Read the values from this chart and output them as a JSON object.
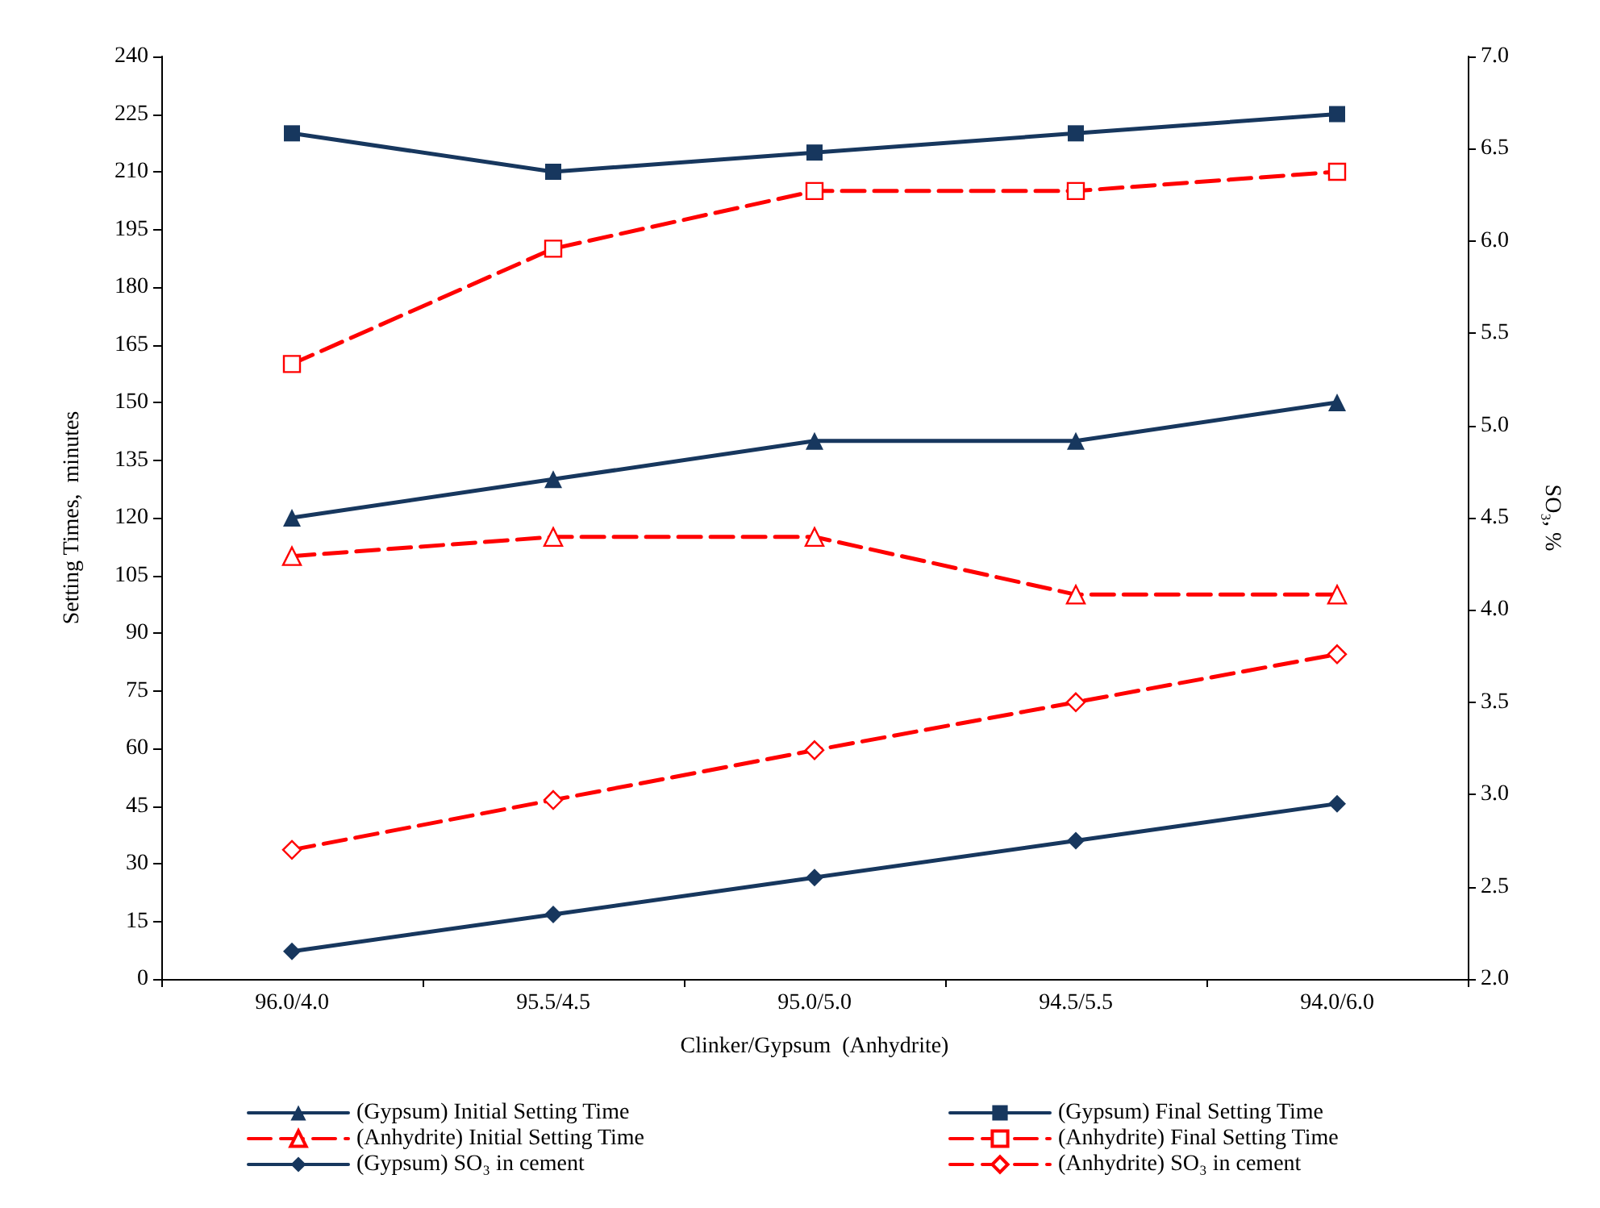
{
  "chart_data": {
    "type": "line",
    "xlabel": "Clinker/Gypsum  (Anhydrite)",
    "ylabel": "Setting Times,  minutes",
    "y2label": "SO₃, %",
    "categories": [
      "96.0/4.0",
      "95.5/4.5",
      "95.0/5.0",
      "94.5/5.5",
      "94.0/6.0"
    ],
    "ylim": [
      0,
      240
    ],
    "yticks": [
      0,
      15,
      30,
      45,
      60,
      75,
      90,
      105,
      120,
      135,
      150,
      165,
      180,
      195,
      210,
      225,
      240
    ],
    "y2lim": [
      2.0,
      7.0
    ],
    "y2ticks": [
      {
        "value": 2,
        "label": "2.0"
      },
      {
        "value": 2.5,
        "label": "2.5"
      },
      {
        "value": 3,
        "label": "3.0"
      },
      {
        "value": 3.5,
        "label": "3.5"
      },
      {
        "value": 4,
        "label": "4.0"
      },
      {
        "value": 4.5,
        "label": "4.5"
      },
      {
        "value": 5,
        "label": "5.0"
      },
      {
        "value": 5.5,
        "label": "5.5"
      },
      {
        "value": 6,
        "label": "6.0"
      },
      {
        "value": 6.5,
        "label": "6.5"
      },
      {
        "value": 7,
        "label": "7.0"
      }
    ],
    "grid": false,
    "legend": "bottom",
    "series": [
      {
        "name": "(Gypsum) Initial Setting Time",
        "color": "#17375e",
        "marker": "triangle",
        "line_style": "solid",
        "values": [
          120,
          130,
          140,
          140,
          150
        ]
      },
      {
        "name": "(Gypsum) Final Setting Time",
        "color": "#17375e",
        "marker": "square",
        "line_style": "solid",
        "values": [
          220,
          210,
          215,
          220,
          225
        ]
      },
      {
        "name": "(Anhydrite) Initial Setting Time",
        "color": "#ff0000",
        "marker": "triangle",
        "line_style": "dashed",
        "values": [
          110,
          115,
          115,
          100,
          100
        ]
      },
      {
        "name": "(Anhydrite) Final Setting Time",
        "color": "#ff0000",
        "marker": "square",
        "line_style": "dashed",
        "values": [
          160,
          190,
          205,
          205,
          210
        ]
      },
      {
        "name": "(Gypsum) SO₃ in cement",
        "color": "#17375e",
        "marker": "diamond",
        "line_style": "solid",
        "axis": "y2",
        "values": [
          2.15,
          2.35,
          2.55,
          2.75,
          2.95
        ]
      },
      {
        "name": "(Anhydrite) SO₃ in cement",
        "color": "#ff0000",
        "marker": "diamond",
        "line_style": "dashed",
        "axis": "y2",
        "values": [
          2.7,
          2.97,
          3.24,
          3.5,
          3.76
        ]
      }
    ]
  }
}
